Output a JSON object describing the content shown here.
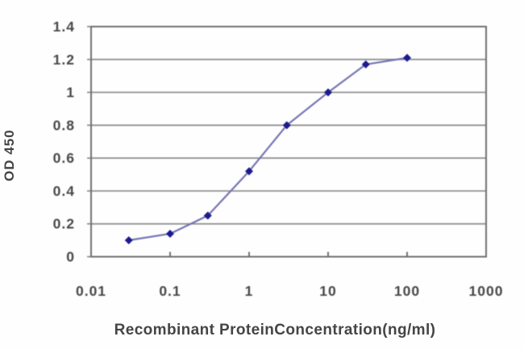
{
  "figure": {
    "kind": "elisa-standard-curve",
    "background": "#fefefe"
  },
  "colors": {
    "grid": "#8a8a8a",
    "axis": "#6f6f6f",
    "tick_text": "#474747",
    "title_text": "#454545",
    "marker": "#1b1b8e",
    "line": "#7474b4"
  },
  "chart_data": {
    "type": "line",
    "title": "",
    "xlabel": "Recombinant ProteinConcentration(ng/ml)",
    "ylabel": "OD 450",
    "x_scale": "log",
    "xlim": [
      0.01,
      1000
    ],
    "ylim": [
      0,
      1.4
    ],
    "x_ticks": [
      0.01,
      0.1,
      1,
      10,
      100,
      1000
    ],
    "x_tick_labels": [
      "0.01",
      "0.1",
      "1",
      "10",
      "100",
      "1000"
    ],
    "y_ticks": [
      0,
      0.2,
      0.4,
      0.6,
      0.8,
      1,
      1.2,
      1.4
    ],
    "y_tick_labels": [
      "0",
      "0.2",
      "0.4",
      "0.6",
      "0.8",
      "1",
      "1.2",
      "1.4"
    ],
    "grid": "horizontal",
    "legend": "none",
    "series": [
      {
        "name": "OD 450 vs concentration",
        "marker": "diamond",
        "marker_color": "#1b1b8e",
        "line_color": "#7474b4",
        "points": [
          {
            "x": 0.03,
            "y": 0.1
          },
          {
            "x": 0.1,
            "y": 0.14
          },
          {
            "x": 0.3,
            "y": 0.25
          },
          {
            "x": 1,
            "y": 0.52
          },
          {
            "x": 3,
            "y": 0.8
          },
          {
            "x": 10,
            "y": 1.0
          },
          {
            "x": 30,
            "y": 1.17
          },
          {
            "x": 100,
            "y": 1.21
          }
        ]
      }
    ]
  }
}
